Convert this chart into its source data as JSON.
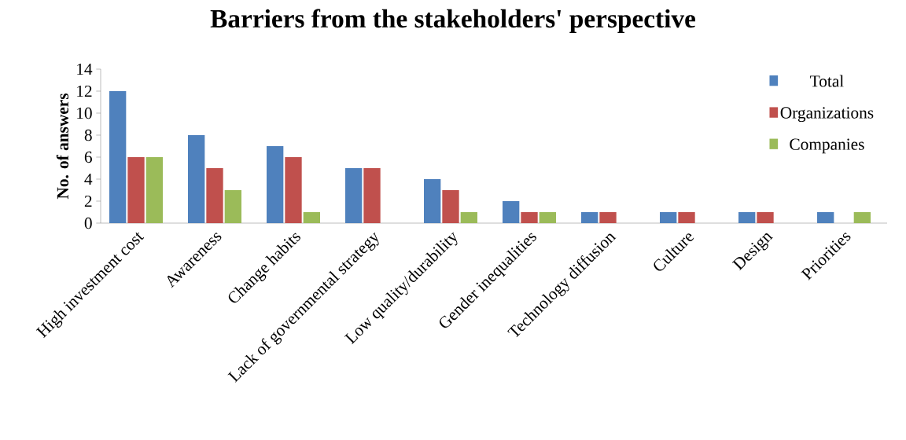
{
  "chart_data": {
    "type": "bar",
    "title": "Barriers from the stakeholders' perspective",
    "ylabel": "No. of answers",
    "categories": [
      "High investment cost",
      "Awareness",
      "Change habits",
      "Lack of governmental strategy",
      "Low quality/durability",
      "Gender inequalities",
      "Technology diffusion",
      "Culture",
      "Design",
      "Priorities"
    ],
    "series": [
      {
        "name": "Total",
        "color": "#4f81bd",
        "values": [
          12,
          8,
          7,
          5,
          4,
          2,
          1,
          1,
          1,
          1
        ]
      },
      {
        "name": "Organizations",
        "color": "#c0504d",
        "values": [
          6,
          5,
          6,
          5,
          3,
          1,
          1,
          1,
          1,
          0
        ]
      },
      {
        "name": "Companies",
        "color": "#9bbb59",
        "values": [
          6,
          3,
          1,
          0,
          1,
          1,
          0,
          0,
          0,
          1
        ]
      }
    ],
    "ylim": [
      0,
      14
    ],
    "yticks": [
      0,
      2,
      4,
      6,
      8,
      10,
      12,
      14
    ],
    "grid": false,
    "legend": "top right"
  }
}
